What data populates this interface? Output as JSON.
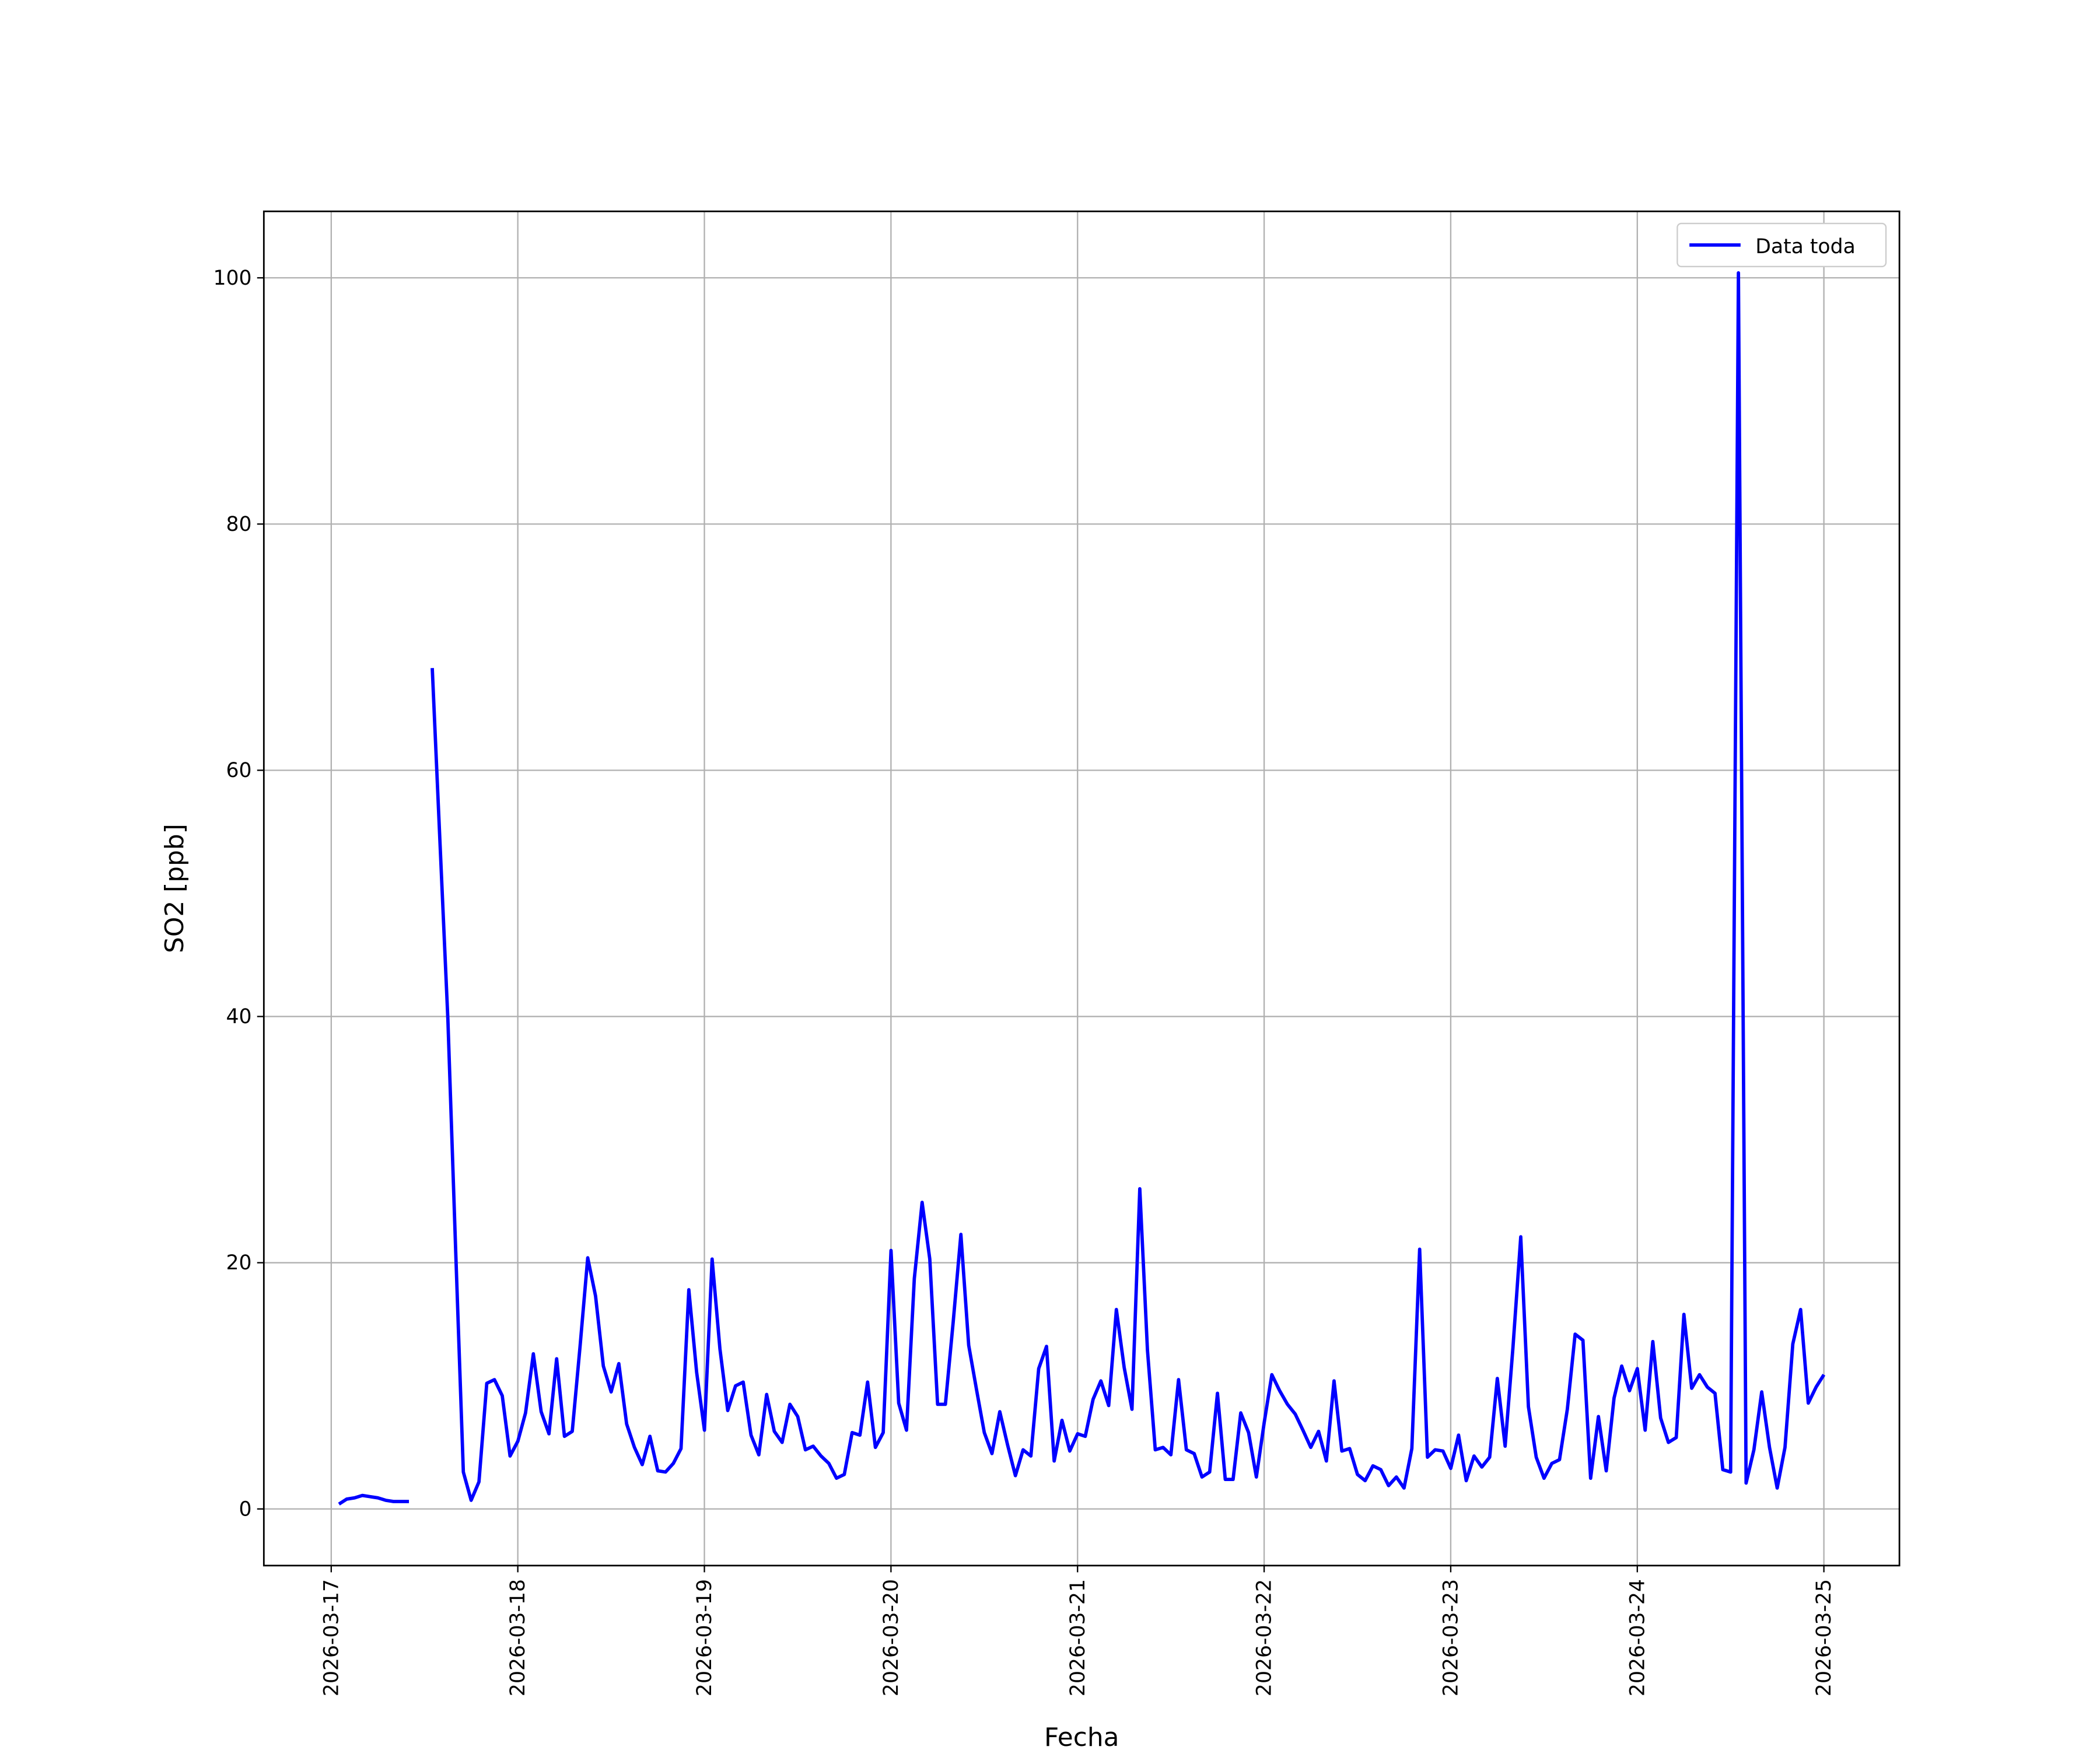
{
  "chart_data": {
    "type": "line",
    "title": "",
    "xlabel": "Fecha",
    "ylabel": "SO2 [ppb]",
    "xlim": [
      "2026-03-16 15:20",
      "2026-03-25 09:43"
    ],
    "ylim": [
      -4.6,
      105.4
    ],
    "grid": true,
    "legend_placement": "top-right",
    "xticks": [
      "2026-03-17",
      "2026-03-18",
      "2026-03-19",
      "2026-03-20",
      "2026-03-21",
      "2026-03-22",
      "2026-03-23",
      "2026-03-24",
      "2026-03-25"
    ],
    "yticks": [
      0,
      20,
      40,
      60,
      80,
      100
    ],
    "series": [
      {
        "name": "Data toda",
        "color": "#0000ff",
        "x": [
          "2026-03-17 01:00",
          "2026-03-17 02:00",
          "2026-03-17 03:00",
          "2026-03-17 04:00",
          "2026-03-17 05:00",
          "2026-03-17 06:00",
          "2026-03-17 07:00",
          "2026-03-17 08:00",
          "2026-03-17 09:00",
          "2026-03-17 10:00",
          "2026-03-17 11:00",
          "2026-03-17 12:00",
          "2026-03-17 13:00",
          "2026-03-17 14:00",
          "2026-03-17 15:00",
          "2026-03-17 16:00",
          "2026-03-17 17:00",
          "2026-03-17 18:00",
          "2026-03-17 19:00",
          "2026-03-17 20:00",
          "2026-03-17 21:00",
          "2026-03-17 22:00",
          "2026-03-17 23:00",
          "2026-03-18 00:00",
          "2026-03-18 01:00",
          "2026-03-18 02:00",
          "2026-03-18 03:00",
          "2026-03-18 04:00",
          "2026-03-18 05:00",
          "2026-03-18 06:00",
          "2026-03-18 07:00",
          "2026-03-18 08:00",
          "2026-03-18 09:00",
          "2026-03-18 10:00",
          "2026-03-18 11:00",
          "2026-03-18 12:00",
          "2026-03-18 13:00",
          "2026-03-18 14:00",
          "2026-03-18 15:00",
          "2026-03-18 16:00",
          "2026-03-18 17:00",
          "2026-03-18 18:00",
          "2026-03-18 19:00",
          "2026-03-18 20:00",
          "2026-03-18 21:00",
          "2026-03-18 22:00",
          "2026-03-18 23:00",
          "2026-03-19 00:00",
          "2026-03-19 01:00",
          "2026-03-19 02:00",
          "2026-03-19 03:00",
          "2026-03-19 04:00",
          "2026-03-19 05:00",
          "2026-03-19 06:00",
          "2026-03-19 07:00",
          "2026-03-19 08:00",
          "2026-03-19 09:00",
          "2026-03-19 10:00",
          "2026-03-19 11:00",
          "2026-03-19 12:00",
          "2026-03-19 13:00",
          "2026-03-19 14:00",
          "2026-03-19 15:00",
          "2026-03-19 16:00",
          "2026-03-19 17:00",
          "2026-03-19 18:00",
          "2026-03-19 19:00",
          "2026-03-19 20:00",
          "2026-03-19 21:00",
          "2026-03-19 22:00",
          "2026-03-19 23:00",
          "2026-03-20 00:00",
          "2026-03-20 01:00",
          "2026-03-20 02:00",
          "2026-03-20 03:00",
          "2026-03-20 04:00",
          "2026-03-20 05:00",
          "2026-03-20 06:00",
          "2026-03-20 07:00",
          "2026-03-20 08:00",
          "2026-03-20 09:00",
          "2026-03-20 10:00",
          "2026-03-20 11:00",
          "2026-03-20 12:00",
          "2026-03-20 13:00",
          "2026-03-20 14:00",
          "2026-03-20 15:00",
          "2026-03-20 16:00",
          "2026-03-20 17:00",
          "2026-03-20 18:00",
          "2026-03-20 19:00",
          "2026-03-20 20:00",
          "2026-03-20 21:00",
          "2026-03-20 22:00",
          "2026-03-20 23:00",
          "2026-03-21 00:00",
          "2026-03-21 01:00",
          "2026-03-21 02:00",
          "2026-03-21 03:00",
          "2026-03-21 04:00",
          "2026-03-21 05:00",
          "2026-03-21 06:00",
          "2026-03-21 07:00",
          "2026-03-21 08:00",
          "2026-03-21 09:00",
          "2026-03-21 10:00",
          "2026-03-21 11:00",
          "2026-03-21 12:00",
          "2026-03-21 13:00",
          "2026-03-21 14:00",
          "2026-03-21 15:00",
          "2026-03-21 16:00",
          "2026-03-21 17:00",
          "2026-03-21 18:00",
          "2026-03-21 19:00",
          "2026-03-21 20:00",
          "2026-03-21 21:00",
          "2026-03-21 22:00",
          "2026-03-21 23:00",
          "2026-03-22 00:00",
          "2026-03-22 01:00",
          "2026-03-22 02:00",
          "2026-03-22 03:00",
          "2026-03-22 04:00",
          "2026-03-22 05:00",
          "2026-03-22 06:00",
          "2026-03-22 07:00",
          "2026-03-22 08:00",
          "2026-03-22 09:00",
          "2026-03-22 10:00",
          "2026-03-22 11:00",
          "2026-03-22 12:00",
          "2026-03-22 13:00",
          "2026-03-22 14:00",
          "2026-03-22 15:00",
          "2026-03-22 16:00",
          "2026-03-22 17:00",
          "2026-03-22 18:00",
          "2026-03-22 19:00",
          "2026-03-22 20:00",
          "2026-03-22 21:00",
          "2026-03-22 22:00",
          "2026-03-22 23:00",
          "2026-03-23 00:00",
          "2026-03-23 01:00",
          "2026-03-23 02:00",
          "2026-03-23 03:00",
          "2026-03-23 04:00",
          "2026-03-23 05:00",
          "2026-03-23 06:00",
          "2026-03-23 07:00",
          "2026-03-23 08:00",
          "2026-03-23 09:00",
          "2026-03-23 10:00",
          "2026-03-23 11:00",
          "2026-03-23 12:00",
          "2026-03-23 13:00",
          "2026-03-23 14:00",
          "2026-03-23 15:00",
          "2026-03-23 16:00",
          "2026-03-23 17:00",
          "2026-03-23 18:00",
          "2026-03-23 19:00",
          "2026-03-23 20:00",
          "2026-03-23 21:00",
          "2026-03-23 22:00",
          "2026-03-23 23:00",
          "2026-03-24 00:00",
          "2026-03-24 01:00",
          "2026-03-24 02:00",
          "2026-03-24 03:00",
          "2026-03-24 04:00",
          "2026-03-24 05:00",
          "2026-03-24 06:00",
          "2026-03-24 07:00",
          "2026-03-24 08:00",
          "2026-03-24 09:00",
          "2026-03-24 10:00",
          "2026-03-24 11:00",
          "2026-03-24 12:00",
          "2026-03-24 13:00",
          "2026-03-24 14:00",
          "2026-03-24 15:00",
          "2026-03-24 16:00",
          "2026-03-24 17:00",
          "2026-03-24 18:00",
          "2026-03-24 19:00",
          "2026-03-24 20:00",
          "2026-03-24 21:00",
          "2026-03-24 22:00",
          "2026-03-24 23:00",
          "2026-03-25 00:00"
        ],
        "values": [
          0.4,
          0.8,
          0.9,
          1.1,
          1.0,
          0.9,
          0.7,
          0.6,
          0.6,
          0.6,
          null,
          null,
          68.3,
          54,
          39.8,
          21,
          3,
          0.7,
          2.2,
          10.2,
          10.5,
          9.2,
          4.3,
          5.5,
          7.8,
          12.6,
          7.9,
          6.1,
          12.2,
          5.9,
          6.3,
          13.2,
          20.4,
          17.3,
          11.6,
          9.5,
          11.8,
          6.9,
          5,
          3.6,
          5.9,
          3.1,
          3,
          3.7,
          4.9,
          17.8,
          11.1,
          6.4,
          20.3,
          13,
          8,
          10,
          10.3,
          6,
          4.4,
          9.3,
          6.3,
          5.4,
          8.5,
          7.5,
          4.8,
          5.1,
          4.3,
          3.7,
          2.5,
          2.8,
          6.2,
          6,
          10.3,
          5,
          6.2,
          21,
          8.6,
          6.4,
          18.7,
          24.9,
          20.3,
          8.5,
          8.5,
          15.2,
          22.3,
          13.3,
          9.7,
          6.2,
          4.5,
          7.9,
          5.2,
          2.7,
          4.8,
          4.3,
          11.4,
          13.2,
          3.9,
          7.2,
          4.7,
          6.1,
          5.9,
          8.9,
          10.4,
          8.4,
          16.2,
          11.5,
          8.1,
          26,
          12.9,
          4.8,
          5,
          4.4,
          10.5,
          4.8,
          4.5,
          2.6,
          3,
          9.4,
          2.4,
          2.4,
          7.8,
          6.2,
          2.6,
          7,
          10.9,
          9.6,
          8.5,
          7.7,
          6.4,
          5,
          6.3,
          3.9,
          10.4,
          4.7,
          4.9,
          2.8,
          2.3,
          3.5,
          3.2,
          1.9,
          2.6,
          1.7,
          4.9,
          21.1,
          4.2,
          4.8,
          4.7,
          3.3,
          6,
          2.3,
          4.3,
          3.4,
          4.2,
          10.6,
          5.1,
          13.1,
          22.1,
          8.3,
          4.2,
          2.5,
          3.7,
          4,
          8.1,
          14.2,
          13.7,
          2.5,
          7.5,
          3.1,
          9,
          11.6,
          9.6,
          11.4,
          6.4,
          13.6,
          7.4,
          5.4,
          5.8,
          15.8,
          9.8,
          10.9,
          9.9,
          9.4,
          3.2,
          3,
          100.4,
          2.1,
          4.8,
          9.5,
          5,
          1.7,
          5,
          13.4,
          16.2,
          8.6,
          9.9,
          10.9
        ]
      }
    ]
  }
}
